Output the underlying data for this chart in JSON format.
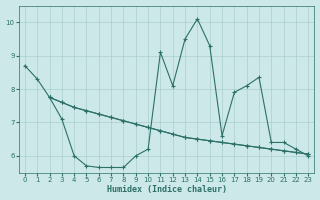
{
  "xlabel": "Humidex (Indice chaleur)",
  "xlim": [
    -0.5,
    23.5
  ],
  "ylim": [
    5.5,
    10.5
  ],
  "yticks": [
    6,
    7,
    8,
    9,
    10
  ],
  "xticks": [
    0,
    1,
    2,
    3,
    4,
    5,
    6,
    7,
    8,
    9,
    10,
    11,
    12,
    13,
    14,
    15,
    16,
    17,
    18,
    19,
    20,
    21,
    22,
    23
  ],
  "bg_color": "#cce8e8",
  "line_color": "#2d7068",
  "grid_color": "#aacfcf",
  "line1": {
    "x": [
      0,
      1,
      2,
      3,
      4,
      5,
      6,
      7,
      8,
      9,
      10,
      11,
      12,
      13,
      14,
      15,
      16,
      17,
      18,
      19,
      20,
      21,
      22,
      23
    ],
    "y": [
      8.7,
      8.3,
      7.75,
      7.6,
      7.45,
      7.35,
      7.25,
      7.15,
      7.05,
      6.95,
      6.85,
      6.75,
      6.65,
      6.55,
      6.5,
      6.45,
      6.4,
      6.35,
      6.3,
      6.25,
      6.2,
      6.15,
      6.1,
      6.05
    ]
  },
  "line2": {
    "x": [
      2,
      3,
      4,
      5,
      6,
      7,
      8,
      9,
      10,
      11,
      12,
      13,
      14,
      15,
      16,
      17,
      18,
      19,
      20,
      21,
      22,
      23
    ],
    "y": [
      7.75,
      7.1,
      6.0,
      5.7,
      5.65,
      5.65,
      5.65,
      6.0,
      6.2,
      9.1,
      8.1,
      9.5,
      10.1,
      9.3,
      6.6,
      7.9,
      8.1,
      8.35,
      6.4,
      6.4,
      6.2,
      6.0
    ]
  },
  "line3": {
    "x": [
      2,
      3,
      4,
      5,
      6,
      7,
      8,
      9,
      10,
      11,
      12,
      13,
      14,
      15,
      16,
      17,
      18,
      19,
      20,
      21,
      22,
      23
    ],
    "y": [
      7.75,
      7.6,
      7.45,
      7.35,
      7.25,
      7.15,
      7.05,
      6.95,
      6.85,
      6.75,
      6.65,
      6.55,
      6.5,
      6.45,
      6.4,
      6.35,
      6.3,
      6.25,
      6.2,
      6.15,
      6.1,
      6.05
    ]
  }
}
